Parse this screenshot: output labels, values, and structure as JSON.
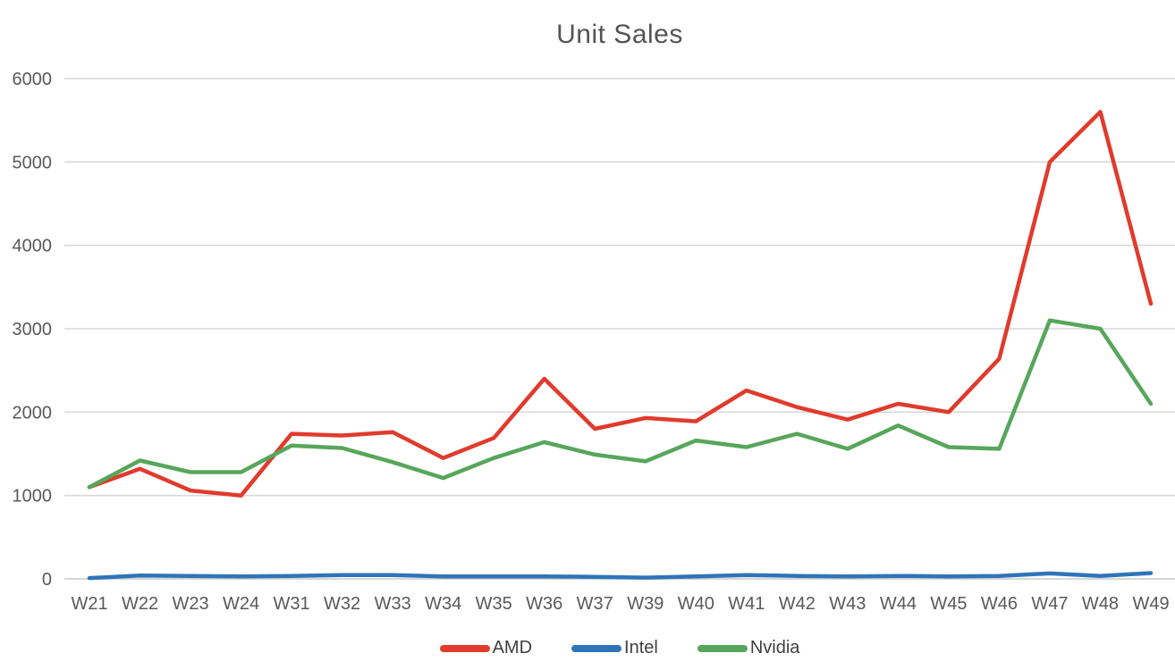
{
  "chart_data": {
    "type": "line",
    "title": "Unit Sales",
    "xlabel": "",
    "ylabel": "",
    "ylim": [
      0,
      6000
    ],
    "y_ticks": [
      0,
      1000,
      2000,
      3000,
      4000,
      5000,
      6000
    ],
    "grid": "horizontal",
    "legend_position": "bottom",
    "categories": [
      "W21",
      "W22",
      "W23",
      "W24",
      "W31",
      "W32",
      "W33",
      "W34",
      "W35",
      "W36",
      "W37",
      "W39",
      "W40",
      "W41",
      "W42",
      "W43",
      "W44",
      "W45",
      "W46",
      "W47",
      "W48",
      "W49"
    ],
    "series": [
      {
        "name": "AMD",
        "color": "#E03B2C",
        "values": [
          1100,
          1320,
          1060,
          1000,
          1740,
          1720,
          1760,
          1450,
          1690,
          2400,
          1800,
          1930,
          1890,
          2260,
          2060,
          1910,
          2100,
          2000,
          2640,
          5000,
          5600,
          3300
        ]
      },
      {
        "name": "Intel",
        "color": "#2F74B9",
        "values": [
          10,
          40,
          35,
          30,
          35,
          45,
          45,
          30,
          30,
          30,
          25,
          15,
          30,
          45,
          35,
          30,
          35,
          30,
          35,
          65,
          35,
          70
        ]
      },
      {
        "name": "Nvidia",
        "color": "#57A65B",
        "values": [
          1100,
          1420,
          1280,
          1280,
          1600,
          1570,
          1400,
          1210,
          1450,
          1640,
          1490,
          1410,
          1660,
          1580,
          1740,
          1560,
          1840,
          1580,
          1560,
          3100,
          3000,
          2100
        ]
      }
    ]
  },
  "colors": {
    "background": "#FFFFFF",
    "gridline": "#D9D9D9",
    "zero_line": "#C9C9C9",
    "axis_text": "#595959",
    "title_text": "#545454",
    "legend_text": "#404040"
  }
}
